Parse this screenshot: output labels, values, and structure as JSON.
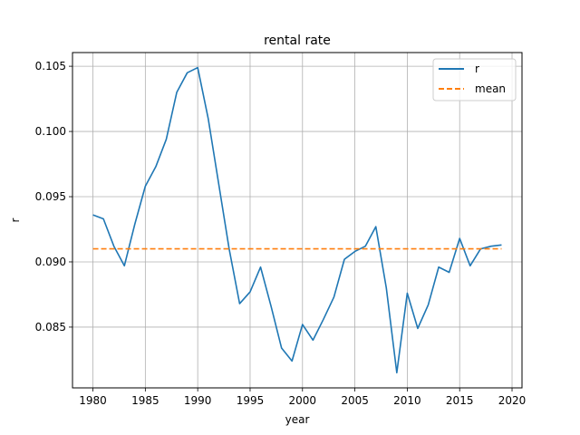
{
  "chart_data": {
    "type": "line",
    "title": "rental rate",
    "xlabel": "year",
    "ylabel": "r",
    "xlim": [
      1978.05,
      2020.95
    ],
    "ylim": [
      0.08034,
      0.10605
    ],
    "x_ticks": [
      1980,
      1985,
      1990,
      1995,
      2000,
      2005,
      2010,
      2015,
      2020
    ],
    "y_ticks": [
      0.085,
      0.09,
      0.095,
      0.1,
      0.105
    ],
    "y_tick_labels": [
      "0.085",
      "0.090",
      "0.095",
      "0.100",
      "0.105"
    ],
    "grid": true,
    "legend_position": "top-right",
    "x": [
      1980,
      1981,
      1982,
      1983,
      1984,
      1985,
      1986,
      1987,
      1988,
      1989,
      1990,
      1991,
      1992,
      1993,
      1994,
      1995,
      1996,
      1997,
      1998,
      1999,
      2000,
      2001,
      2002,
      2003,
      2004,
      2005,
      2006,
      2007,
      2008,
      2009,
      2010,
      2011,
      2012,
      2013,
      2014,
      2015,
      2016,
      2017,
      2018,
      2019
    ],
    "series": [
      {
        "name": "r",
        "color": "#1f77b4",
        "style": "solid",
        "values": [
          0.0936,
          0.0933,
          0.0912,
          0.0897,
          0.0929,
          0.0958,
          0.0973,
          0.0994,
          0.103,
          0.1045,
          0.1049,
          0.101,
          0.096,
          0.091,
          0.0868,
          0.0877,
          0.0896,
          0.0866,
          0.0834,
          0.0824,
          0.0852,
          0.084,
          0.0856,
          0.0873,
          0.0902,
          0.0908,
          0.0912,
          0.0927,
          0.088,
          0.0815,
          0.0876,
          0.0849,
          0.0867,
          0.0896,
          0.0892,
          0.0918,
          0.0897,
          0.091,
          0.0912,
          0.0913
        ]
      },
      {
        "name": "mean",
        "color": "#ff7f0e",
        "style": "dashed",
        "values": [
          0.091,
          0.091,
          0.091,
          0.091,
          0.091,
          0.091,
          0.091,
          0.091,
          0.091,
          0.091,
          0.091,
          0.091,
          0.091,
          0.091,
          0.091,
          0.091,
          0.091,
          0.091,
          0.091,
          0.091,
          0.091,
          0.091,
          0.091,
          0.091,
          0.091,
          0.091,
          0.091,
          0.091,
          0.091,
          0.091,
          0.091,
          0.091,
          0.091,
          0.091,
          0.091,
          0.091,
          0.091,
          0.091,
          0.091,
          0.091
        ]
      }
    ]
  }
}
